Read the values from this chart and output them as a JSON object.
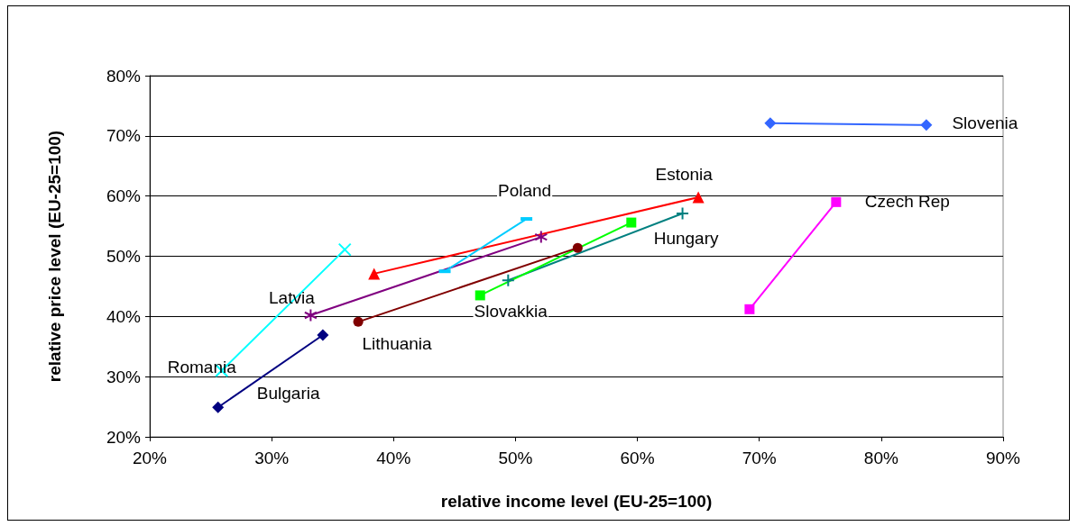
{
  "chart_data": {
    "type": "line",
    "xlabel": "relative income level (EU-25=100)",
    "ylabel": "relative price level (EU-25=100)",
    "xlim": [
      20,
      90
    ],
    "xticks": [
      {
        "value": 20,
        "label": "20%"
      },
      {
        "value": 30,
        "label": "30%"
      },
      {
        "value": 40,
        "label": "40%"
      },
      {
        "value": 50,
        "label": "50%"
      },
      {
        "value": 60,
        "label": "60%"
      },
      {
        "value": 70,
        "label": "70%"
      },
      {
        "value": 80,
        "label": "80%"
      },
      {
        "value": 90,
        "label": "90%"
      }
    ],
    "ylim": [
      20,
      80
    ],
    "yticks": [
      {
        "value": 20,
        "label": "20%"
      },
      {
        "value": 30,
        "label": "30%"
      },
      {
        "value": 40,
        "label": "40%"
      },
      {
        "value": 50,
        "label": "50%"
      },
      {
        "value": 60,
        "label": "60%"
      },
      {
        "value": 70,
        "label": "70%"
      },
      {
        "value": 80,
        "label": "80%"
      }
    ],
    "grid": "y",
    "legend": false,
    "series": [
      {
        "name": "Slovenia",
        "color": "#3366ff",
        "marker": "diamond",
        "x": [
          70.9,
          83.7
        ],
        "values": [
          72.1,
          71.8
        ]
      },
      {
        "name": "Czech Rep",
        "color": "#ff00ff",
        "marker": "square",
        "x": [
          69.2,
          76.3
        ],
        "values": [
          41.2,
          59.0
        ]
      },
      {
        "name": "Estonia",
        "color": "#ff0000",
        "marker": "triangle",
        "x": [
          38.4,
          65.0
        ],
        "values": [
          47.1,
          59.8
        ]
      },
      {
        "name": "Hungary",
        "color": "#008080",
        "marker": "cross",
        "x": [
          49.4,
          63.7
        ],
        "values": [
          46.0,
          57.1
        ]
      },
      {
        "name": "Slovakkia",
        "color": "#00ff00",
        "marker": "square",
        "x": [
          47.1,
          59.5
        ],
        "values": [
          43.5,
          55.6
        ]
      },
      {
        "name": "Lithuania",
        "color": "#800000",
        "marker": "circle",
        "x": [
          37.1,
          55.1
        ],
        "values": [
          39.1,
          51.4
        ]
      },
      {
        "name": "Latvia",
        "color": "#800080",
        "marker": "cross",
        "x": [
          33.2,
          52.1
        ],
        "values": [
          40.2,
          53.2
        ]
      },
      {
        "name": "Poland",
        "color": "#00ccff",
        "marker": "square",
        "x": [
          44.2,
          50.9
        ],
        "values": [
          47.5,
          56.2
        ]
      },
      {
        "name": "Romania",
        "color": "#00ffff",
        "marker": "cross",
        "x": [
          25.9,
          36.0
        ],
        "values": [
          31.0,
          51.1
        ]
      },
      {
        "name": "Bulgaria",
        "color": "#000080",
        "marker": "diamond",
        "x": [
          25.6,
          34.2
        ],
        "values": [
          24.9,
          36.9
        ]
      }
    ]
  }
}
